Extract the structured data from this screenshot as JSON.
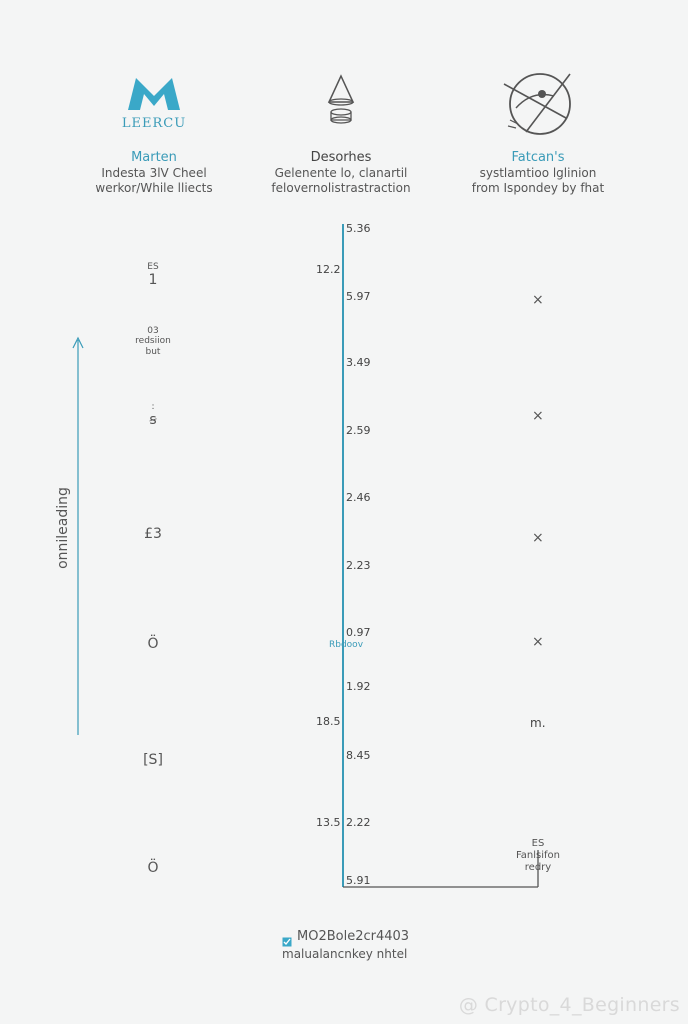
{
  "columns": [
    {
      "title": "Marten",
      "desc_1": "Indesta 3lV Cheel",
      "desc_2": "werkor/While lliects",
      "logo_text": "LEERCU",
      "icon": "m-logo-icon",
      "color": "#3a9bb8"
    },
    {
      "title": "Desorhes",
      "desc_1": "Gelenente lo, clanartil",
      "desc_2": "felovernolistrastraction",
      "icon": "cone-stack-icon",
      "color": "#444444"
    },
    {
      "title": "Fatcan's",
      "desc_1": "systlamtioo lglinion",
      "desc_2": "from Ispondey by fhat",
      "icon": "crossed-circle-icon",
      "color": "#3a9bb8"
    }
  ],
  "axis": {
    "color": "#3a9bb8",
    "ticks": [
      "5.36",
      "5.97",
      "3.49",
      "2.59",
      "2.46",
      "2.23",
      "0.97",
      "1.92",
      "8.45",
      "2.22",
      "5.91"
    ],
    "left_markers": [
      {
        "label": "12.2",
        "near": 1
      },
      {
        "label": "18.5",
        "near": 7
      },
      {
        "label": "13.5",
        "near": 9
      }
    ],
    "inline_label": "Rbdoov"
  },
  "left_column": {
    "items": [
      {
        "top": "ES",
        "bottom": "1"
      },
      {
        "top": "03",
        "bottom": "redsiion\nbut"
      },
      {
        "top": ":",
        "bottom": "ꞩ"
      },
      {
        "top": "",
        "bottom": "£3"
      },
      {
        "top": "",
        "bottom": "Ö"
      },
      {
        "top": "",
        "bottom": "[S]"
      },
      {
        "top": "",
        "bottom": "Ö"
      }
    ],
    "vertical_label": "onnileading"
  },
  "right_column": {
    "marks": [
      "×",
      "×",
      "×",
      "×"
    ],
    "label_1": "m.",
    "label_2_top": "ES",
    "label_2_mid": "Fanlsifon",
    "label_2_bot": "redry"
  },
  "footer": {
    "line_1": "MO2Bole2cr4403",
    "line_2": "malualancnkey nhtel",
    "icon": "check-square-icon"
  },
  "watermark": "@ Crypto_4_Beginners"
}
